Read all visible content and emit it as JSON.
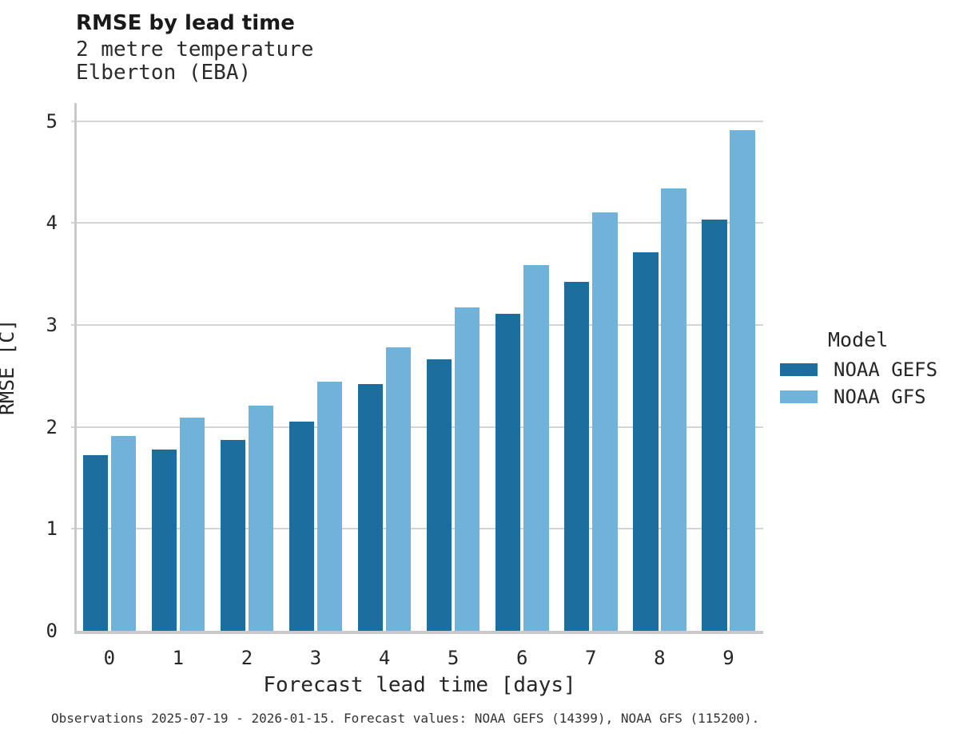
{
  "chart_data": {
    "type": "bar",
    "title": "RMSE by lead time",
    "subtitle1": "2 metre temperature",
    "subtitle2": "Elberton (EBA)",
    "categories": [
      "0",
      "1",
      "2",
      "3",
      "4",
      "5",
      "6",
      "7",
      "8",
      "9"
    ],
    "series": [
      {
        "name": "NOAA GEFS",
        "color": "#1c6e9e",
        "values": [
          1.72,
          1.78,
          1.87,
          2.05,
          2.42,
          2.66,
          3.11,
          3.42,
          3.71,
          4.03
        ]
      },
      {
        "name": "NOAA GFS",
        "color": "#70b2d9",
        "values": [
          1.91,
          2.09,
          2.21,
          2.44,
          2.78,
          3.17,
          3.59,
          4.1,
          4.34,
          4.91
        ]
      }
    ],
    "xlabel": "Forecast lead time [days]",
    "ylabel": "RMSE [C]",
    "ylim": [
      0,
      5
    ],
    "yticks": [
      0,
      1,
      2,
      3,
      4,
      5
    ],
    "grid": "horizontal",
    "legend_title": "Model",
    "legend_position": "right",
    "caption": "Observations 2025-07-19 - 2026-01-15. Forecast values: NOAA GEFS (14399), NOAA GFS (115200)."
  },
  "colors": {
    "gridline": "#d4d4d4",
    "axis_spine": "#c9c9c9",
    "text": "#262626"
  }
}
